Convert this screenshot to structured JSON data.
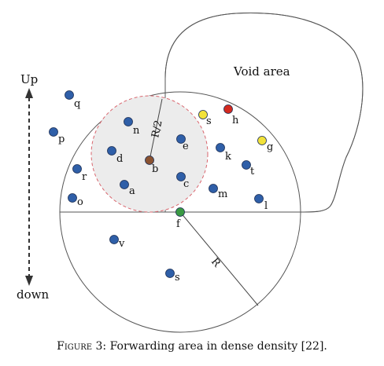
{
  "labels": {
    "void_area": "Void area",
    "up": "Up",
    "down": "down",
    "radius": "R",
    "half_radius": "R/2"
  },
  "caption": {
    "figure": "Figure 3:",
    "text": "Forwarding area in dense density [22]."
  },
  "colors": {
    "node": "#2f5fa8",
    "source": "#8a5230",
    "destination": "#3a9a43",
    "yellow": "#f2e23a",
    "red": "#d42a1f",
    "forwarding_zone": "#ececec",
    "dashed_circle": "#d9666e"
  },
  "nodes": [
    {
      "id": "q",
      "color": "node"
    },
    {
      "id": "p",
      "color": "node"
    },
    {
      "id": "r",
      "color": "node"
    },
    {
      "id": "o",
      "color": "node"
    },
    {
      "id": "n",
      "color": "node"
    },
    {
      "id": "d",
      "color": "node"
    },
    {
      "id": "b",
      "color": "source"
    },
    {
      "id": "a",
      "color": "node"
    },
    {
      "id": "e",
      "color": "node"
    },
    {
      "id": "c",
      "color": "node"
    },
    {
      "id": "s",
      "color": "yellow"
    },
    {
      "id": "h",
      "color": "red"
    },
    {
      "id": "g",
      "color": "yellow"
    },
    {
      "id": "k",
      "color": "node"
    },
    {
      "id": "t",
      "color": "node"
    },
    {
      "id": "m",
      "color": "node"
    },
    {
      "id": "l",
      "color": "node"
    },
    {
      "id": "f",
      "color": "destination"
    },
    {
      "id": "v",
      "color": "node"
    },
    {
      "id": "s",
      "color": "node"
    }
  ]
}
